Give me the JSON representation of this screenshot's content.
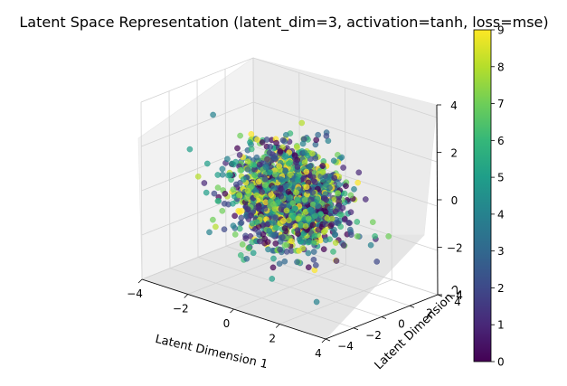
{
  "chart_data": {
    "type": "scatter",
    "projection": "3d",
    "title": "Latent Space Representation (latent_dim=3, activation=tanh, loss=mse)",
    "xlabel": "Latent Dimension 1",
    "ylabel": "Latent Dimension 2",
    "zlabel": "",
    "xlim": [
      -4,
      4
    ],
    "ylim": [
      -4,
      4
    ],
    "zlim": [
      -4,
      4
    ],
    "xticks": [
      "−4",
      "−2",
      "0",
      "2",
      "4"
    ],
    "yticks": [
      "−4",
      "−2",
      "0",
      "2",
      "4"
    ],
    "zticks": [
      "−4",
      "−2",
      "0",
      "2",
      "4"
    ],
    "grid": true,
    "colormap": "viridis",
    "color_range": [
      0,
      9
    ],
    "colorbar_ticks": [
      "0",
      "1",
      "2",
      "3",
      "4",
      "5",
      "6",
      "7",
      "8",
      "9"
    ],
    "point_count_estimate": 2000,
    "distribution": "approximately standard normal in each latent dimension, centered at origin",
    "class_labels": [
      0,
      1,
      2,
      3,
      4,
      5,
      6,
      7,
      8,
      9
    ],
    "marker_alpha": 0.7
  }
}
